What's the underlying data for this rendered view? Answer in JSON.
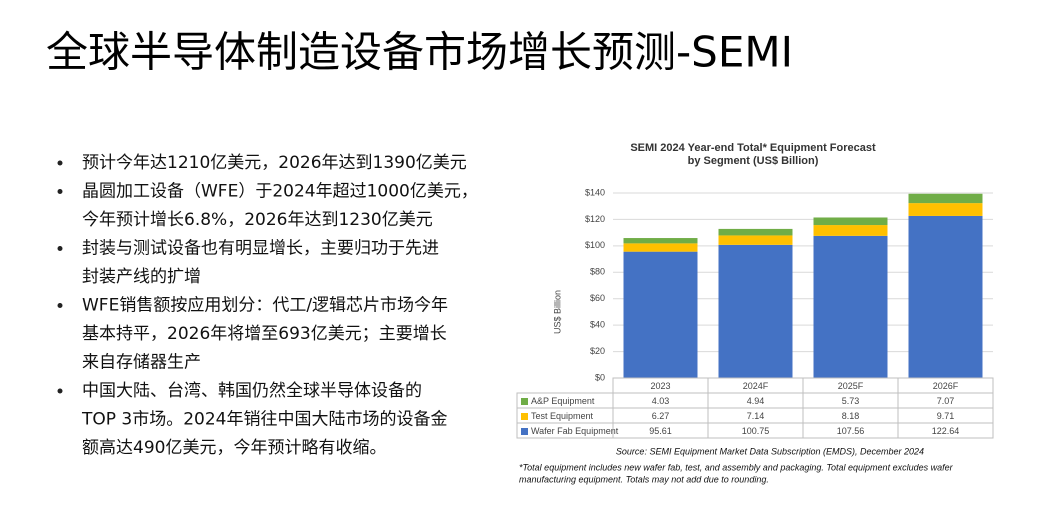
{
  "title": "全球半导体制造设备市场增长预测-SEMI",
  "bullets": [
    [
      "预计今年达1210亿美元，2026年达到1390亿美元"
    ],
    [
      "晶圆加工设备（WFE）于2024年超过1000亿美元，",
      "今年预计增长6.8%，2026年达到1230亿美元"
    ],
    [
      "封装与测试设备也有明显增长，主要归功于先进",
      "封装产线的扩增"
    ],
    [
      "WFE销售额按应用划分：代工/逻辑芯片市场今年",
      "基本持平，2026年将增至693亿美元；主要增长",
      "来自存储器生产"
    ],
    [
      "中国大陆、台湾、韩国仍然全球半导体设备的",
      "TOP 3市场。2024年销往中国大陆市场的设备金",
      "额高达490亿美元，今年预计略有收缩。"
    ]
  ],
  "chart_data": {
    "type": "stacked_bar",
    "title": "SEMI 2024 Year-end Total* Equipment Forecast",
    "subtitle": "by Segment (US$ Billion)",
    "ylabel": "US$ Billion",
    "categories": [
      "2023",
      "2024F",
      "2025F",
      "2026F"
    ],
    "series": [
      {
        "name": "Wafer Fab Equipment",
        "color": "#4472c4",
        "values": [
          95.61,
          100.75,
          107.56,
          122.64
        ]
      },
      {
        "name": "Test Equipment",
        "color": "#ffc000",
        "values": [
          6.27,
          7.14,
          8.18,
          9.71
        ]
      },
      {
        "name": "A&P Equipment",
        "color": "#70ad47",
        "values": [
          4.03,
          4.94,
          5.73,
          7.07
        ]
      }
    ],
    "ylim": [
      0,
      140
    ],
    "yticks": [
      {
        "value": 0,
        "label": "$0"
      },
      {
        "value": 20,
        "label": "$20"
      },
      {
        "value": 40,
        "label": "$40"
      },
      {
        "value": 60,
        "label": "$60"
      },
      {
        "value": 80,
        "label": "$80"
      },
      {
        "value": 100,
        "label": "$100"
      },
      {
        "value": 120,
        "label": "$120"
      },
      {
        "value": 140,
        "label": "$140"
      }
    ],
    "grid": true,
    "source": "Source: SEMI Equipment Market Data Subscription (EMDS), December 2024",
    "footnote": [
      "*Total equipment includes new wafer fab, test, and assembly and packaging. Total equipment excludes wafer",
      "manufacturing equipment. Totals may not add due to rounding."
    ]
  }
}
